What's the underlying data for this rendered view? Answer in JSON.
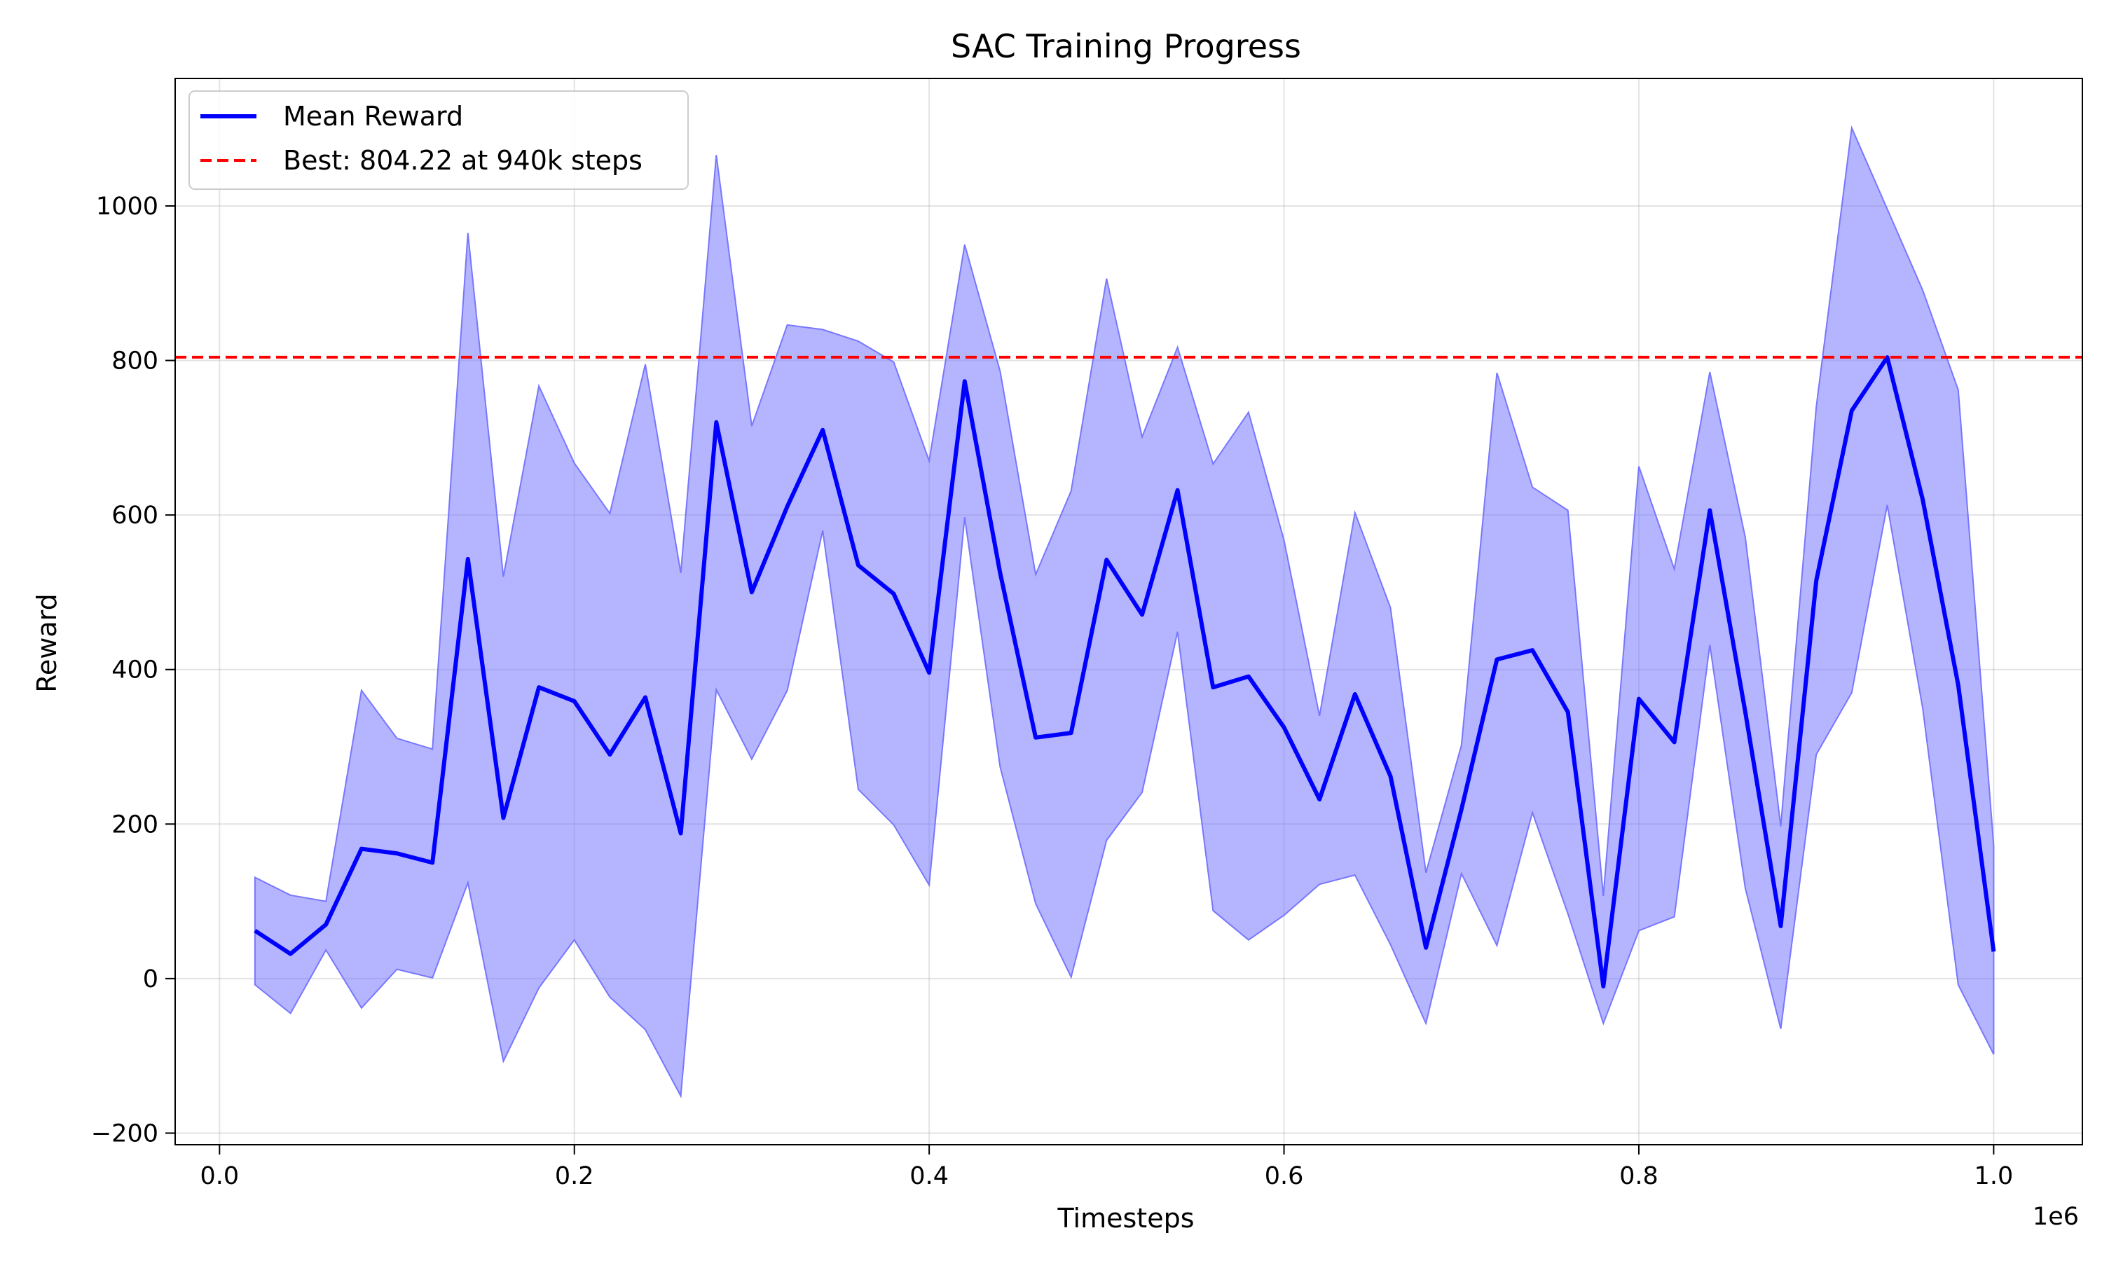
{
  "chart_data": {
    "type": "line",
    "title": "SAC Training Progress",
    "xlabel": "Timesteps",
    "ylabel": "Reward",
    "x_offset_label": "1e6",
    "xlim": [
      -0.025,
      1.05
    ],
    "ylim": [
      -215,
      1165
    ],
    "x_ticks": [
      0.0,
      0.2,
      0.4,
      0.6,
      0.8,
      1.0
    ],
    "x_tick_labels": [
      "0.0",
      "0.2",
      "0.4",
      "0.6",
      "0.8",
      "1.0"
    ],
    "y_ticks": [
      -200,
      0,
      200,
      400,
      600,
      800,
      1000
    ],
    "y_tick_labels": [
      "−200",
      "0",
      "200",
      "400",
      "600",
      "800",
      "1000"
    ],
    "grid": true,
    "legend_position": "top-left",
    "x": [
      0.02,
      0.04,
      0.06,
      0.08,
      0.1,
      0.12,
      0.14,
      0.16,
      0.18,
      0.2,
      0.22,
      0.24,
      0.26,
      0.28,
      0.3,
      0.32,
      0.34,
      0.36,
      0.38,
      0.4,
      0.42,
      0.44,
      0.46,
      0.48,
      0.5,
      0.52,
      0.54,
      0.56,
      0.58,
      0.6,
      0.62,
      0.64,
      0.66,
      0.68,
      0.7,
      0.72,
      0.74,
      0.76,
      0.78,
      0.8,
      0.82,
      0.84,
      0.86,
      0.88,
      0.9,
      0.92,
      0.94,
      0.96,
      0.98,
      1.0
    ],
    "series": [
      {
        "name": "Mean Reward",
        "color": "#0000ff",
        "values": [
          62,
          32,
          70,
          168,
          162,
          150,
          543,
          208,
          377,
          359,
          290,
          364,
          188,
          720,
          500,
          611,
          710,
          535,
          498,
          396,
          773,
          525,
          312,
          318,
          542,
          471,
          632,
          377,
          391,
          325,
          232,
          368,
          262,
          40,
          219,
          413,
          425,
          345,
          -10,
          362,
          306,
          606,
          345,
          68,
          515,
          735,
          804,
          620,
          380,
          35
        ]
      }
    ],
    "band": {
      "color": "#7777ff",
      "upper": [
        131,
        108,
        100,
        373,
        311,
        297,
        965,
        520,
        767,
        667,
        602,
        795,
        525,
        1066,
        715,
        846,
        840,
        825,
        798,
        670,
        950,
        786,
        523,
        631,
        906,
        701,
        817,
        666,
        733,
        567,
        340,
        603,
        480,
        137,
        302,
        784,
        636,
        606,
        107,
        663,
        530,
        785,
        571,
        197,
        740,
        1101,
        996,
        891,
        762,
        172
      ],
      "lower": [
        -8,
        -45,
        37,
        -38,
        12,
        1,
        124,
        -107,
        -12,
        50,
        -24,
        -66,
        -152,
        374,
        284,
        373,
        580,
        245,
        199,
        121,
        597,
        274,
        97,
        2,
        179,
        241,
        449,
        88,
        50,
        82,
        122,
        134,
        44,
        -58,
        136,
        43,
        215,
        84,
        -58,
        62,
        80,
        432,
        117,
        -65,
        290,
        370,
        613,
        350,
        -8,
        -98
      ]
    },
    "reference_line": {
      "name": "Best: 804.22 at 940k steps",
      "value": 804.22,
      "color": "#ff0000",
      "style": "dashed"
    }
  }
}
